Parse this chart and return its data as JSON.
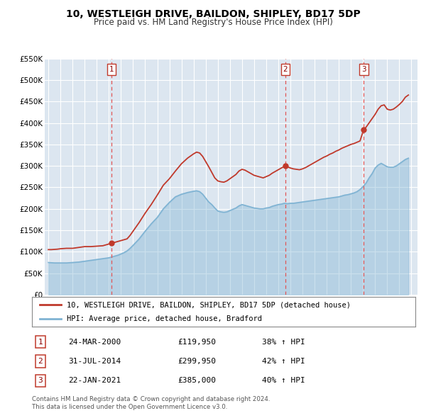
{
  "title": "10, WESTLEIGH DRIVE, BAILDON, SHIPLEY, BD17 5DP",
  "subtitle": "Price paid vs. HM Land Registry's House Price Index (HPI)",
  "ylim": [
    0,
    550000
  ],
  "yticks": [
    0,
    50000,
    100000,
    150000,
    200000,
    250000,
    300000,
    350000,
    400000,
    450000,
    500000,
    550000
  ],
  "ytick_labels": [
    "£0",
    "£50K",
    "£100K",
    "£150K",
    "£200K",
    "£250K",
    "£300K",
    "£350K",
    "£400K",
    "£450K",
    "£500K",
    "£550K"
  ],
  "xlim_start": 1994.7,
  "xlim_end": 2025.5,
  "background_color": "#ffffff",
  "plot_background_color": "#dce6f0",
  "grid_color": "#ffffff",
  "sale_line_color": "#c0392b",
  "hpi_line_color": "#7fb3d3",
  "sale_marker_color": "#c0392b",
  "vline_color": "#e05555",
  "legend_label_sale": "10, WESTLEIGH DRIVE, BAILDON, SHIPLEY, BD17 5DP (detached house)",
  "legend_label_hpi": "HPI: Average price, detached house, Bradford",
  "transactions": [
    {
      "num": 1,
      "date": "24-MAR-2000",
      "price": 119950,
      "price_str": "£119,950",
      "pct": "38%",
      "year": 2000.23
    },
    {
      "num": 2,
      "date": "31-JUL-2014",
      "price": 299950,
      "price_str": "£299,950",
      "pct": "42%",
      "year": 2014.58
    },
    {
      "num": 3,
      "date": "22-JAN-2021",
      "price": 385000,
      "price_str": "£385,000",
      "pct": "40%",
      "year": 2021.06
    }
  ],
  "footnote1": "Contains HM Land Registry data © Crown copyright and database right 2024.",
  "footnote2": "This data is licensed under the Open Government Licence v3.0.",
  "sale_data_years": [
    1995.0,
    1995.25,
    1995.5,
    1995.75,
    1996.0,
    1996.25,
    1996.5,
    1996.75,
    1997.0,
    1997.25,
    1997.5,
    1997.75,
    1998.0,
    1998.25,
    1998.5,
    1998.75,
    1999.0,
    1999.25,
    1999.5,
    1999.75,
    2000.23,
    2000.5,
    2000.75,
    2001.0,
    2001.25,
    2001.5,
    2001.75,
    2002.0,
    2002.5,
    2003.0,
    2003.5,
    2004.0,
    2004.5,
    2005.0,
    2005.5,
    2006.0,
    2006.5,
    2007.0,
    2007.25,
    2007.5,
    2007.75,
    2008.0,
    2008.25,
    2008.5,
    2008.75,
    2009.0,
    2009.25,
    2009.5,
    2009.75,
    2010.0,
    2010.25,
    2010.5,
    2010.75,
    2011.0,
    2011.25,
    2011.5,
    2011.75,
    2012.0,
    2012.25,
    2012.5,
    2012.75,
    2013.0,
    2013.25,
    2013.5,
    2013.75,
    2014.0,
    2014.25,
    2014.58,
    2015.0,
    2015.25,
    2015.5,
    2015.75,
    2016.0,
    2016.25,
    2016.5,
    2016.75,
    2017.0,
    2017.25,
    2017.5,
    2017.75,
    2018.0,
    2018.25,
    2018.5,
    2018.75,
    2019.0,
    2019.25,
    2019.5,
    2019.75,
    2020.0,
    2020.25,
    2020.5,
    2020.75,
    2021.06,
    2021.25,
    2021.5,
    2021.75,
    2022.0,
    2022.25,
    2022.5,
    2022.75,
    2023.0,
    2023.25,
    2023.5,
    2023.75,
    2024.0,
    2024.25,
    2024.5,
    2024.75
  ],
  "sale_data_values": [
    105000,
    105000,
    105500,
    106000,
    107000,
    107500,
    108000,
    108000,
    108000,
    109000,
    110000,
    111000,
    112000,
    112000,
    112000,
    112500,
    113000,
    113500,
    114000,
    116000,
    119950,
    122000,
    124000,
    126000,
    128000,
    130000,
    138000,
    148000,
    168000,
    190000,
    210000,
    232000,
    255000,
    270000,
    288000,
    305000,
    318000,
    328000,
    332000,
    330000,
    322000,
    310000,
    298000,
    285000,
    272000,
    265000,
    263000,
    262000,
    265000,
    270000,
    275000,
    280000,
    288000,
    292000,
    290000,
    286000,
    282000,
    278000,
    276000,
    274000,
    272000,
    275000,
    278000,
    283000,
    287000,
    291000,
    295000,
    299950,
    295000,
    293000,
    292000,
    291000,
    293000,
    296000,
    300000,
    304000,
    308000,
    312000,
    316000,
    320000,
    323000,
    327000,
    330000,
    334000,
    337000,
    341000,
    344000,
    347000,
    350000,
    352000,
    355000,
    358000,
    385000,
    390000,
    400000,
    410000,
    420000,
    432000,
    440000,
    442000,
    432000,
    430000,
    432000,
    437000,
    443000,
    450000,
    460000,
    465000
  ],
  "hpi_data_years": [
    1995.0,
    1995.25,
    1995.5,
    1995.75,
    1996.0,
    1996.25,
    1996.5,
    1996.75,
    1997.0,
    1997.25,
    1997.5,
    1997.75,
    1998.0,
    1998.25,
    1998.5,
    1998.75,
    1999.0,
    1999.25,
    1999.5,
    1999.75,
    2000.0,
    2000.25,
    2000.5,
    2000.75,
    2001.0,
    2001.25,
    2001.5,
    2001.75,
    2002.0,
    2002.5,
    2003.0,
    2003.5,
    2004.0,
    2004.5,
    2005.0,
    2005.5,
    2006.0,
    2006.5,
    2007.0,
    2007.25,
    2007.5,
    2007.75,
    2008.0,
    2008.25,
    2008.5,
    2008.75,
    2009.0,
    2009.25,
    2009.5,
    2009.75,
    2010.0,
    2010.25,
    2010.5,
    2010.75,
    2011.0,
    2011.25,
    2011.5,
    2011.75,
    2012.0,
    2012.25,
    2012.5,
    2012.75,
    2013.0,
    2013.25,
    2013.5,
    2013.75,
    2014.0,
    2014.25,
    2014.5,
    2014.75,
    2015.0,
    2015.25,
    2015.5,
    2015.75,
    2016.0,
    2016.25,
    2016.5,
    2016.75,
    2017.0,
    2017.25,
    2017.5,
    2017.75,
    2018.0,
    2018.25,
    2018.5,
    2018.75,
    2019.0,
    2019.25,
    2019.5,
    2019.75,
    2020.0,
    2020.25,
    2020.5,
    2020.75,
    2021.0,
    2021.25,
    2021.5,
    2021.75,
    2022.0,
    2022.25,
    2022.5,
    2022.75,
    2023.0,
    2023.25,
    2023.5,
    2023.75,
    2024.0,
    2024.25,
    2024.5,
    2024.75
  ],
  "hpi_data_values": [
    75000,
    74500,
    74000,
    74000,
    74000,
    74000,
    74000,
    74500,
    75000,
    75500,
    76000,
    77000,
    78000,
    79000,
    80000,
    81000,
    82000,
    83000,
    84000,
    85000,
    86000,
    88000,
    90000,
    92000,
    95000,
    98000,
    102000,
    108000,
    115000,
    130000,
    148000,
    165000,
    180000,
    200000,
    215000,
    228000,
    234000,
    238000,
    241000,
    242000,
    240000,
    234000,
    225000,
    216000,
    210000,
    202000,
    195000,
    193000,
    192000,
    193000,
    196000,
    199000,
    202000,
    207000,
    210000,
    208000,
    206000,
    204000,
    202000,
    201000,
    200000,
    200000,
    202000,
    203000,
    206000,
    208000,
    210000,
    211000,
    213000,
    212000,
    213000,
    213000,
    214000,
    215000,
    216000,
    217000,
    218000,
    219000,
    220000,
    221000,
    222000,
    223000,
    224000,
    225000,
    226000,
    227000,
    228000,
    230000,
    232000,
    233000,
    235000,
    237000,
    240000,
    245000,
    252000,
    260000,
    272000,
    282000,
    295000,
    302000,
    306000,
    302000,
    298000,
    297000,
    297000,
    300000,
    305000,
    310000,
    315000,
    318000
  ]
}
